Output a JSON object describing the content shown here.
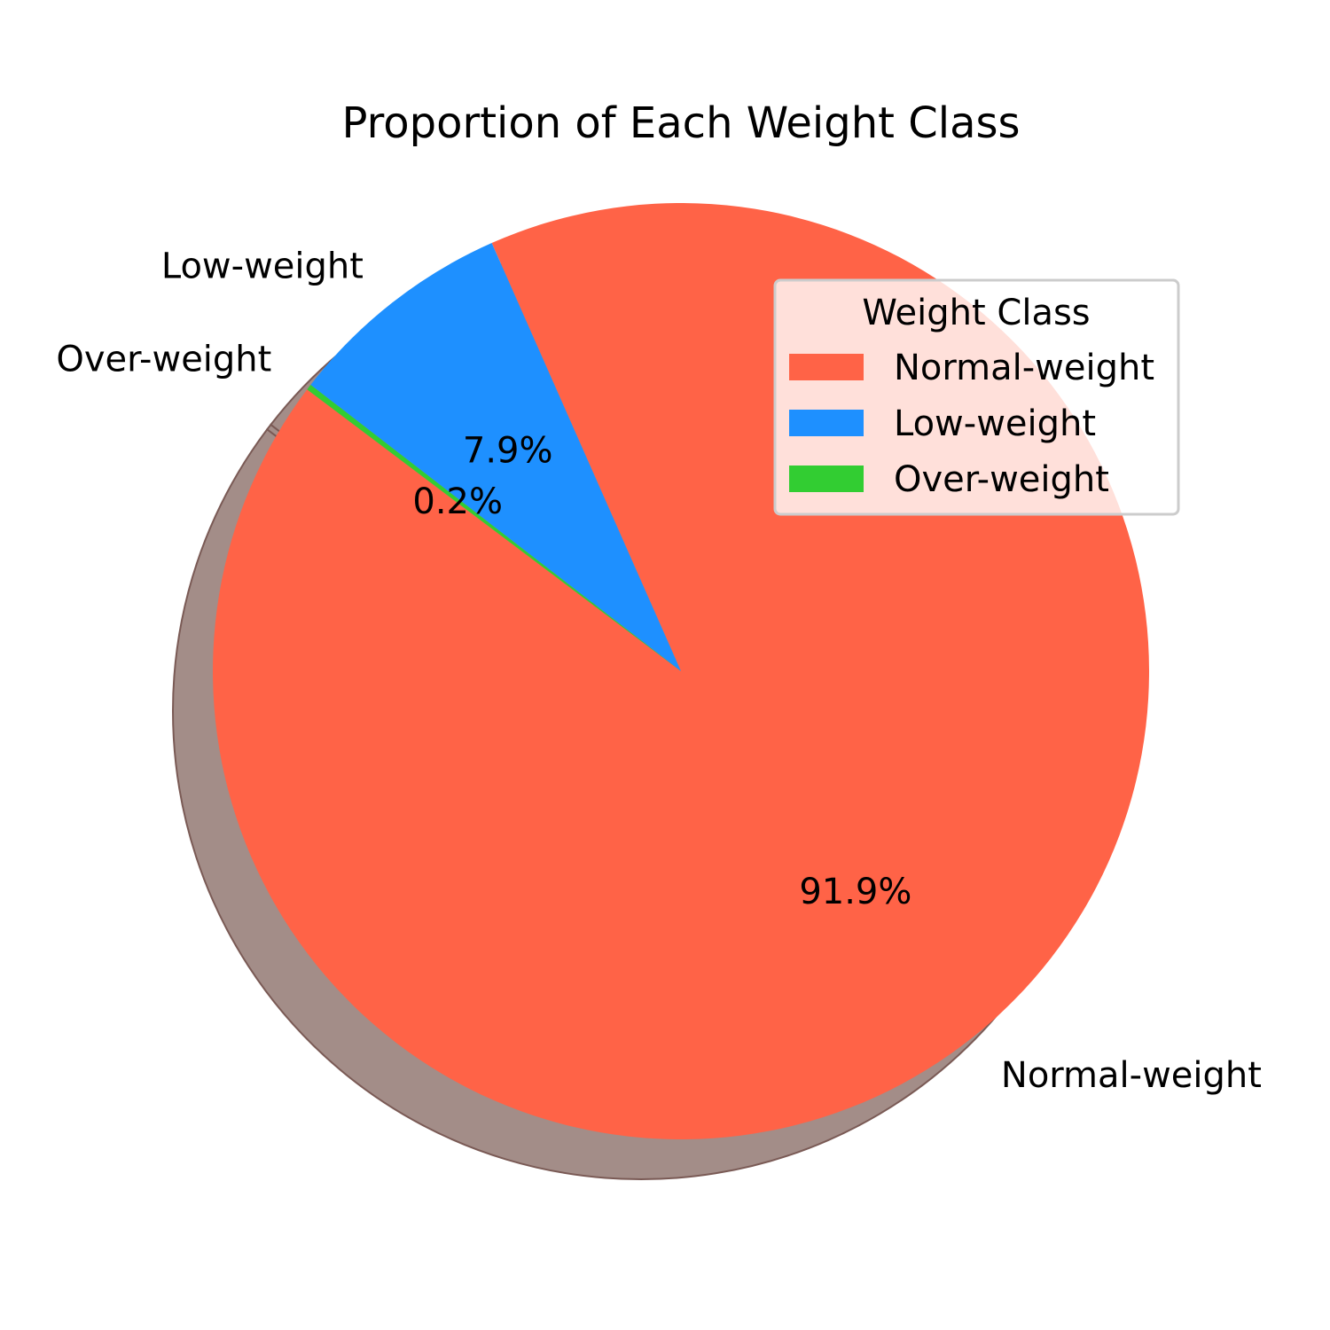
{
  "chart_data": {
    "type": "pie",
    "title": "Proportion of Each Weight Class",
    "slices": [
      {
        "label": "Normal-weight",
        "value": 91.9,
        "pct_label": "91.9%",
        "color": "#FF6347"
      },
      {
        "label": "Low-weight",
        "value": 7.9,
        "pct_label": "7.9%",
        "color": "#1E90FF"
      },
      {
        "label": "Over-weight",
        "value": 0.2,
        "pct_label": "0.2%",
        "color": "#32CD32"
      }
    ],
    "start_angle_deg": 143,
    "shadow": true,
    "legend": {
      "title": "Weight Class",
      "placement": "top-right",
      "entries": [
        "Normal-weight",
        "Low-weight",
        "Over-weight"
      ]
    },
    "shadow_color": "#A38D88"
  }
}
